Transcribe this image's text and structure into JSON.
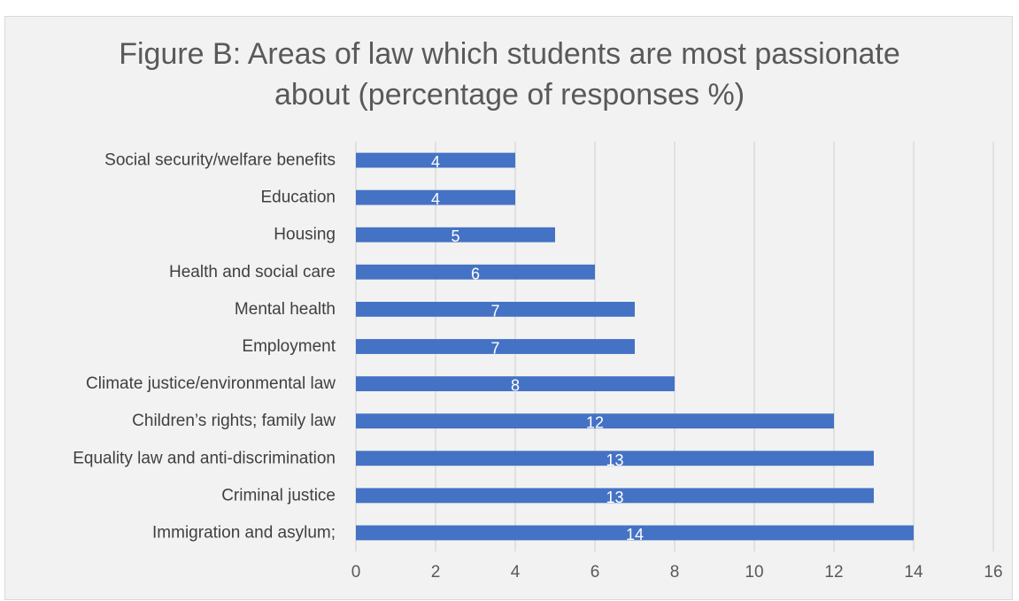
{
  "chart_data": {
    "type": "bar",
    "orientation": "horizontal",
    "title_lines": [
      "Figure B: Areas of law which students are most passionate",
      "about (percentage of responses %)"
    ],
    "categories": [
      "Social security/welfare benefits",
      "Education",
      "Housing",
      "Health and social care",
      "Mental health",
      "Employment",
      "Climate justice/environmental law",
      "Children’s rights; family law",
      "Equality law and anti-discrimination",
      "Criminal justice",
      "Immigration and asylum;"
    ],
    "values": [
      4,
      4,
      5,
      6,
      7,
      7,
      8,
      12,
      13,
      13,
      14
    ],
    "xlim": [
      0,
      16
    ],
    "xticks": [
      0,
      2,
      4,
      6,
      8,
      10,
      12,
      14,
      16
    ],
    "grid": true,
    "data_labels": true,
    "bar_color": "#4472c4"
  }
}
